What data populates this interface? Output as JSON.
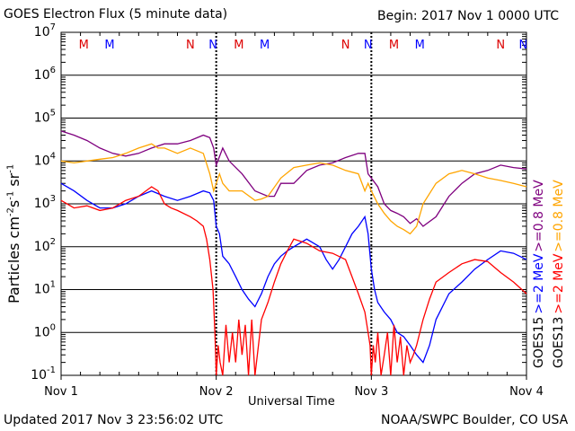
{
  "header": {
    "title": "GOES Electron Flux (5 minute data)",
    "begin": "Begin: 2017 Nov 1 0000 UTC"
  },
  "footer": {
    "updated": "Updated 2017 Nov  3 23:56:02 UTC",
    "source": "NOAA/SWPC Boulder, CO USA"
  },
  "colors": {
    "goes15_high": "#0000ff",
    "goes15_low": "#7f007f",
    "goes13_high": "#ff0000",
    "goes13_low": "#ffa500",
    "marker_M": "#dd0000",
    "marker_N_red": "#dd0000",
    "marker_N_blue": "#0000ff"
  },
  "chart_data": {
    "type": "line",
    "xlabel": "Universal Time",
    "ylabel_parts": {
      "base": "Particles cm",
      "exp1": "-2",
      "mid1": "s",
      "exp2": "-1",
      "mid2": "sr",
      "exp3": "-1"
    },
    "y_scale": "log",
    "ylim": [
      0.1,
      10000000
    ],
    "y_ticks": [
      {
        "base": "10",
        "exp": "-1",
        "value": 0.1
      },
      {
        "base": "10",
        "exp": "0",
        "value": 1
      },
      {
        "base": "10",
        "exp": "1",
        "value": 10
      },
      {
        "base": "10",
        "exp": "2",
        "value": 100
      },
      {
        "base": "10",
        "exp": "3",
        "value": 1000
      },
      {
        "base": "10",
        "exp": "4",
        "value": 10000
      },
      {
        "base": "10",
        "exp": "5",
        "value": 100000
      },
      {
        "base": "10",
        "exp": "6",
        "value": 1000000
      },
      {
        "base": "10",
        "exp": "7",
        "value": 10000000
      }
    ],
    "xlim": [
      0,
      72
    ],
    "x_ticks": [
      {
        "label": "Nov 1",
        "value": 0
      },
      {
        "label": "Nov 2",
        "value": 24
      },
      {
        "label": "Nov 3",
        "value": 48
      },
      {
        "label": "Nov 4",
        "value": 72
      }
    ],
    "threshold": 1000,
    "grid": true,
    "markers": [
      {
        "label": "M",
        "x": 3.5,
        "color": "#dd0000"
      },
      {
        "label": "M",
        "x": 7.5,
        "color": "#0000ff"
      },
      {
        "label": "N",
        "x": 20,
        "color": "#dd0000"
      },
      {
        "label": "N",
        "x": 23.5,
        "color": "#0000ff"
      },
      {
        "label": "M",
        "x": 27.5,
        "color": "#dd0000"
      },
      {
        "label": "M",
        "x": 31.5,
        "color": "#0000ff"
      },
      {
        "label": "N",
        "x": 44,
        "color": "#dd0000"
      },
      {
        "label": "N",
        "x": 47.5,
        "color": "#0000ff"
      },
      {
        "label": "M",
        "x": 51.5,
        "color": "#dd0000"
      },
      {
        "label": "M",
        "x": 55.5,
        "color": "#0000ff"
      },
      {
        "label": "N",
        "x": 68,
        "color": "#dd0000"
      },
      {
        "label": "N",
        "x": 71.5,
        "color": "#0000ff"
      }
    ],
    "legend": [
      {
        "label": ">=0.8 MeV",
        "color": "#7f007f"
      },
      {
        "label": ">=2 MeV",
        "color": "#0000ff"
      },
      {
        "label": "GOES15",
        "color": "#000000"
      },
      {
        "label": ">=0.8 MeV",
        "color": "#ffa500"
      },
      {
        "label": ">=2 MeV",
        "color": "#ff0000"
      },
      {
        "label": "GOES13",
        "color": "#000000"
      }
    ],
    "series": [
      {
        "key": "goes15_low",
        "color": "#7f007f",
        "x": [
          0,
          2,
          4,
          6,
          8,
          10,
          12,
          14,
          16,
          18,
          20,
          22,
          23,
          23.6,
          24,
          25,
          26,
          28,
          30,
          32,
          33,
          34,
          36,
          38,
          40,
          42,
          44,
          46,
          47,
          47.5,
          48,
          49,
          50,
          51,
          52,
          53,
          54,
          55,
          56,
          58,
          60,
          62,
          64,
          66,
          68,
          70,
          72
        ],
        "y": [
          50000,
          40000,
          30000,
          20000,
          15000,
          13000,
          15000,
          20000,
          25000,
          25000,
          30000,
          40000,
          35000,
          20000,
          8000,
          20000,
          10000,
          5000,
          2000,
          1500,
          1500,
          3000,
          3000,
          6000,
          8000,
          9000,
          12000,
          15000,
          15000,
          5000,
          4000,
          2500,
          1000,
          700,
          600,
          500,
          350,
          450,
          300,
          500,
          1500,
          3000,
          5000,
          6000,
          8000,
          7000,
          6500
        ]
      },
      {
        "key": "goes13_low",
        "color": "#ffa500",
        "x": [
          0,
          2,
          4,
          6,
          8,
          10,
          12,
          14,
          15,
          16,
          18,
          20,
          22,
          23,
          23.6,
          24,
          24.5,
          25,
          26,
          28,
          30,
          31,
          32,
          34,
          36,
          38,
          40,
          42,
          44,
          46,
          47,
          47.5,
          48,
          49,
          50,
          51,
          52,
          53,
          54,
          55,
          56,
          58,
          60,
          62,
          64,
          66,
          68,
          70,
          72
        ],
        "y": [
          10000,
          9000,
          10000,
          11000,
          12000,
          15000,
          20000,
          25000,
          20000,
          20000,
          15000,
          20000,
          15000,
          5000,
          2000,
          3000,
          5000,
          3000,
          2000,
          2000,
          1200,
          1300,
          1500,
          4000,
          7000,
          8000,
          9000,
          8000,
          6000,
          5000,
          2000,
          3000,
          2000,
          1000,
          600,
          400,
          300,
          250,
          200,
          300,
          1000,
          3000,
          5000,
          6000,
          5000,
          4000,
          3500,
          3000,
          2500
        ]
      },
      {
        "key": "goes15_high",
        "color": "#0000ff",
        "x": [
          0,
          2,
          4,
          6,
          8,
          10,
          12,
          14,
          16,
          18,
          20,
          22,
          23,
          23.6,
          24,
          24.5,
          25,
          26,
          27,
          28,
          29,
          30,
          31,
          32,
          33,
          34,
          35,
          36,
          38,
          40,
          41,
          42,
          43,
          44,
          45,
          46,
          47,
          47.5,
          48,
          48.5,
          49,
          50,
          51,
          52,
          53,
          54,
          55,
          56,
          57,
          58,
          60,
          62,
          64,
          66,
          68,
          70,
          72
        ],
        "y": [
          3000,
          2000,
          1200,
          800,
          800,
          1000,
          1500,
          2000,
          1500,
          1200,
          1500,
          2000,
          1800,
          1200,
          300,
          200,
          60,
          40,
          20,
          10,
          6,
          4,
          8,
          20,
          40,
          60,
          80,
          100,
          150,
          100,
          50,
          30,
          50,
          100,
          200,
          300,
          500,
          200,
          30,
          10,
          5,
          3,
          2,
          1,
          0.8,
          0.5,
          0.3,
          0.2,
          0.5,
          2,
          8,
          15,
          30,
          50,
          80,
          70,
          50
        ]
      },
      {
        "key": "goes13_high",
        "color": "#ff0000",
        "x": [
          0,
          2,
          4,
          6,
          8,
          10,
          12,
          14,
          15,
          16,
          17,
          18,
          20,
          21,
          22,
          22.5,
          23,
          23.5,
          23.8,
          24,
          24.3,
          24.6,
          25,
          25.5,
          26,
          26.5,
          27,
          27.5,
          28,
          28.5,
          29,
          29.5,
          30,
          31,
          32,
          33,
          34,
          35,
          36,
          38,
          40,
          42,
          44,
          45,
          46,
          47,
          47.5,
          47.8,
          48,
          48.3,
          48.6,
          49,
          49.5,
          50,
          50.5,
          51,
          51.5,
          52,
          52.5,
          53,
          53.5,
          54,
          54.5,
          55,
          56,
          57,
          58,
          60,
          62,
          64,
          66,
          68,
          70,
          72
        ],
        "y": [
          1200,
          800,
          900,
          700,
          800,
          1200,
          1500,
          2500,
          2000,
          1000,
          800,
          700,
          500,
          400,
          300,
          150,
          50,
          10,
          1,
          0.1,
          0.5,
          0.2,
          0.1,
          1.5,
          0.2,
          1,
          0.2,
          2,
          0.3,
          1.5,
          0.1,
          2,
          0.1,
          2,
          5,
          15,
          40,
          80,
          150,
          120,
          80,
          70,
          50,
          20,
          8,
          3,
          1,
          0.5,
          0.1,
          0.5,
          0.2,
          1,
          0.1,
          0.3,
          1,
          0.1,
          1.5,
          0.2,
          0.8,
          0.1,
          0.5,
          0.2,
          0.3,
          0.5,
          2,
          6,
          15,
          25,
          40,
          50,
          45,
          25,
          15,
          8
        ]
      }
    ]
  }
}
